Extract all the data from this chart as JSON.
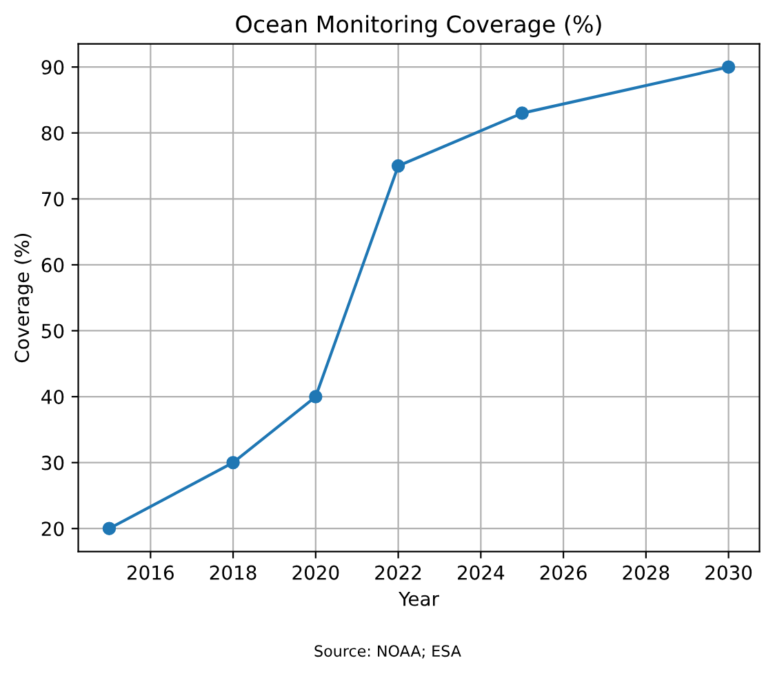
{
  "chart_data": {
    "type": "line",
    "title": "Ocean Monitoring Coverage (%)",
    "xlabel": "Year",
    "ylabel": "Coverage (%)",
    "x": [
      2015,
      2018,
      2020,
      2022,
      2025,
      2030
    ],
    "series": [
      {
        "color": "#1f77b4",
        "values": [
          20,
          30,
          40,
          75,
          83,
          90
        ]
      }
    ],
    "xlim": [
      2014.25,
      2030.75
    ],
    "xticks": [
      2016,
      2018,
      2020,
      2022,
      2024,
      2026,
      2028,
      2030
    ],
    "ylim": [
      16.5,
      93.5
    ],
    "yticks": [
      20,
      30,
      40,
      50,
      60,
      70,
      80,
      90
    ],
    "grid": true,
    "marker": "circle",
    "line_style": "solid",
    "annotations": [
      "Source: NOAA; ESA"
    ]
  }
}
